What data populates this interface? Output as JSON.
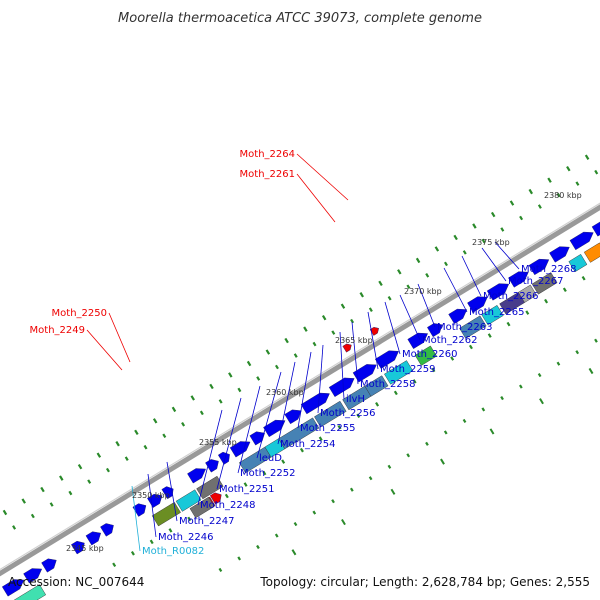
{
  "title": "Moorella thermoacetica ATCC 39073, complete genome",
  "footer": {
    "accession": "Accession: NC_007644",
    "summary": "Topology: circular; Length: 2,628,784 bp; Genes: 2,555"
  },
  "colors": {
    "cds": "#0000ee",
    "pseudo_gray": "#707070",
    "steelblue": "#4682b4",
    "cyan": "#18c8d8",
    "olive": "#6b8e23",
    "green": "#33bb44",
    "orange": "#ff8c00",
    "slateblue": "#483d8b",
    "aquamarine": "#40e0b0",
    "label_blue": "#0000cc",
    "label_red": "#ee0000",
    "label_cyan": "#20b0d8",
    "backbone": "#999999",
    "tick": "#2a8a2a"
  },
  "kbp_labels": [
    "2345 kbp",
    "2350 kbp",
    "2355 kbp",
    "2360 kbp",
    "2365 kbp",
    "2370 kbp",
    "2375 kbp",
    "2380 kbp"
  ],
  "gene_labels": [
    {
      "text": "Moth_2264",
      "color": "red"
    },
    {
      "text": "Moth_2261",
      "color": "red"
    },
    {
      "text": "Moth_2250",
      "color": "red"
    },
    {
      "text": "Moth_2249",
      "color": "red"
    },
    {
      "text": "Moth_2268",
      "color": "blue"
    },
    {
      "text": "Moth_2267",
      "color": "blue"
    },
    {
      "text": "Moth_2266",
      "color": "blue"
    },
    {
      "text": "Moth_2265",
      "color": "blue"
    },
    {
      "text": "Moth_2263",
      "color": "blue"
    },
    {
      "text": "Moth_2262",
      "color": "blue"
    },
    {
      "text": "Moth_2260",
      "color": "blue"
    },
    {
      "text": "Moth_2259",
      "color": "blue"
    },
    {
      "text": "Moth_2258",
      "color": "blue"
    },
    {
      "text": "ilvH",
      "color": "blue"
    },
    {
      "text": "Moth_2256",
      "color": "blue"
    },
    {
      "text": "Moth_2255",
      "color": "blue"
    },
    {
      "text": "Moth_2254",
      "color": "blue"
    },
    {
      "text": "leuD",
      "color": "blue"
    },
    {
      "text": "Moth_2252",
      "color": "blue"
    },
    {
      "text": "Moth_2251",
      "color": "blue"
    },
    {
      "text": "Moth_2248",
      "color": "blue"
    },
    {
      "text": "Moth_2247",
      "color": "blue"
    },
    {
      "text": "Moth_2246",
      "color": "blue"
    },
    {
      "text": "Moth_R0082",
      "color": "cyan"
    }
  ]
}
